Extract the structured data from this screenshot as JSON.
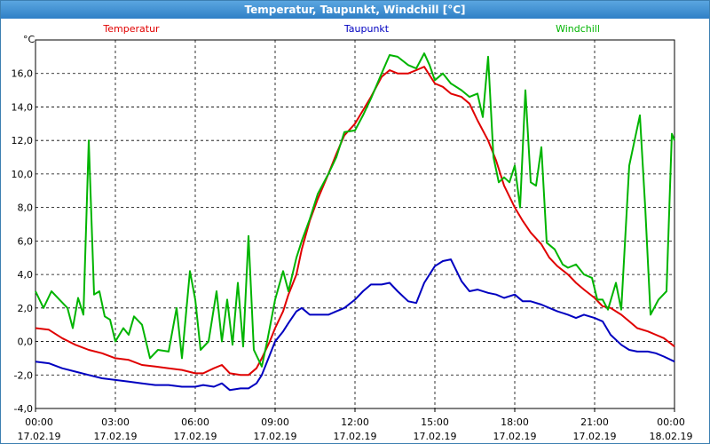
{
  "window": {
    "title": "Temperatur, Taupunkt, Windchill [°C]"
  },
  "chart_data": {
    "type": "line",
    "title": "Temperatur, Taupunkt, Windchill [°C]",
    "ylabel": "°C",
    "xlabel": "",
    "ylim": [
      -4.0,
      18.0
    ],
    "yticks": [
      "-4,0",
      "-2,0",
      "0,0",
      "2,0",
      "4,0",
      "6,0",
      "8,0",
      "10,0",
      "12,0",
      "14,0",
      "16,0"
    ],
    "xticks": [
      {
        "time": "00:00",
        "date": "17.02.19"
      },
      {
        "time": "03:00",
        "date": "17.02.19"
      },
      {
        "time": "06:00",
        "date": "17.02.19"
      },
      {
        "time": "09:00",
        "date": "17.02.19"
      },
      {
        "time": "12:00",
        "date": "17.02.19"
      },
      {
        "time": "15:00",
        "date": "17.02.19"
      },
      {
        "time": "18:00",
        "date": "17.02.19"
      },
      {
        "time": "21:00",
        "date": "17.02.19"
      },
      {
        "time": "00:00",
        "date": "18.02.19"
      }
    ],
    "x_unit": "hours since 17.02.19 00:00",
    "xlim": [
      0,
      24
    ],
    "grid": true,
    "legend_position": "top",
    "series": [
      {
        "name": "Temperatur",
        "color": "#e00000",
        "points": [
          [
            0,
            0.8
          ],
          [
            0.5,
            0.7
          ],
          [
            1,
            0.2
          ],
          [
            1.5,
            -0.2
          ],
          [
            2,
            -0.5
          ],
          [
            2.5,
            -0.7
          ],
          [
            3,
            -1.0
          ],
          [
            3.5,
            -1.1
          ],
          [
            4,
            -1.4
          ],
          [
            4.5,
            -1.5
          ],
          [
            5,
            -1.6
          ],
          [
            5.5,
            -1.7
          ],
          [
            6,
            -1.9
          ],
          [
            6.3,
            -1.9
          ],
          [
            6.7,
            -1.6
          ],
          [
            7,
            -1.4
          ],
          [
            7.3,
            -1.9
          ],
          [
            7.7,
            -2.0
          ],
          [
            8,
            -2.0
          ],
          [
            8.3,
            -1.6
          ],
          [
            8.5,
            -1.0
          ],
          [
            8.8,
            0.0
          ],
          [
            9,
            0.8
          ],
          [
            9.3,
            1.8
          ],
          [
            9.5,
            2.8
          ],
          [
            9.8,
            4.0
          ],
          [
            10,
            5.5
          ],
          [
            10.3,
            7.2
          ],
          [
            10.6,
            8.5
          ],
          [
            11,
            10.0
          ],
          [
            11.3,
            11.2
          ],
          [
            11.6,
            12.3
          ],
          [
            12,
            13.0
          ],
          [
            12.3,
            13.8
          ],
          [
            12.6,
            14.6
          ],
          [
            13,
            15.8
          ],
          [
            13.3,
            16.2
          ],
          [
            13.6,
            16.0
          ],
          [
            14,
            16.0
          ],
          [
            14.3,
            16.2
          ],
          [
            14.6,
            16.4
          ],
          [
            15,
            15.4
          ],
          [
            15.3,
            15.2
          ],
          [
            15.6,
            14.8
          ],
          [
            16,
            14.6
          ],
          [
            16.3,
            14.2
          ],
          [
            16.6,
            13.2
          ],
          [
            17,
            12.0
          ],
          [
            17.3,
            10.8
          ],
          [
            17.6,
            9.3
          ],
          [
            18,
            8.0
          ],
          [
            18.3,
            7.2
          ],
          [
            18.6,
            6.5
          ],
          [
            19,
            5.8
          ],
          [
            19.3,
            5.0
          ],
          [
            19.6,
            4.5
          ],
          [
            20,
            4.0
          ],
          [
            20.3,
            3.5
          ],
          [
            20.6,
            3.1
          ],
          [
            21,
            2.6
          ],
          [
            21.3,
            2.1
          ],
          [
            21.6,
            2.0
          ],
          [
            22,
            1.6
          ],
          [
            22.3,
            1.2
          ],
          [
            22.6,
            0.8
          ],
          [
            23,
            0.6
          ],
          [
            23.3,
            0.4
          ],
          [
            23.6,
            0.2
          ],
          [
            24,
            -0.3
          ]
        ]
      },
      {
        "name": "Taupunkt",
        "color": "#0000c0",
        "points": [
          [
            0,
            -1.2
          ],
          [
            0.5,
            -1.3
          ],
          [
            1,
            -1.6
          ],
          [
            1.5,
            -1.8
          ],
          [
            2,
            -2.0
          ],
          [
            2.5,
            -2.2
          ],
          [
            3,
            -2.3
          ],
          [
            3.5,
            -2.4
          ],
          [
            4,
            -2.5
          ],
          [
            4.5,
            -2.6
          ],
          [
            5,
            -2.6
          ],
          [
            5.5,
            -2.7
          ],
          [
            6,
            -2.7
          ],
          [
            6.3,
            -2.6
          ],
          [
            6.7,
            -2.7
          ],
          [
            7,
            -2.5
          ],
          [
            7.3,
            -2.9
          ],
          [
            7.7,
            -2.8
          ],
          [
            8,
            -2.8
          ],
          [
            8.3,
            -2.5
          ],
          [
            8.5,
            -2.0
          ],
          [
            8.8,
            -0.8
          ],
          [
            9,
            0.0
          ],
          [
            9.3,
            0.6
          ],
          [
            9.5,
            1.1
          ],
          [
            9.8,
            1.8
          ],
          [
            10,
            2.0
          ],
          [
            10.3,
            1.6
          ],
          [
            10.6,
            1.6
          ],
          [
            11,
            1.6
          ],
          [
            11.3,
            1.8
          ],
          [
            11.6,
            2.0
          ],
          [
            12,
            2.5
          ],
          [
            12.3,
            3.0
          ],
          [
            12.6,
            3.4
          ],
          [
            13,
            3.4
          ],
          [
            13.3,
            3.5
          ],
          [
            13.6,
            3.0
          ],
          [
            14,
            2.4
          ],
          [
            14.3,
            2.3
          ],
          [
            14.6,
            3.5
          ],
          [
            15,
            4.5
          ],
          [
            15.3,
            4.8
          ],
          [
            15.6,
            4.9
          ],
          [
            16,
            3.6
          ],
          [
            16.3,
            3.0
          ],
          [
            16.6,
            3.1
          ],
          [
            17,
            2.9
          ],
          [
            17.3,
            2.8
          ],
          [
            17.6,
            2.6
          ],
          [
            18,
            2.8
          ],
          [
            18.3,
            2.4
          ],
          [
            18.6,
            2.4
          ],
          [
            19,
            2.2
          ],
          [
            19.3,
            2.0
          ],
          [
            19.6,
            1.8
          ],
          [
            20,
            1.6
          ],
          [
            20.3,
            1.4
          ],
          [
            20.6,
            1.6
          ],
          [
            21,
            1.4
          ],
          [
            21.3,
            1.2
          ],
          [
            21.6,
            0.4
          ],
          [
            22,
            -0.2
          ],
          [
            22.3,
            -0.5
          ],
          [
            22.6,
            -0.6
          ],
          [
            23,
            -0.6
          ],
          [
            23.3,
            -0.7
          ],
          [
            23.6,
            -0.9
          ],
          [
            24,
            -1.2
          ]
        ]
      },
      {
        "name": "Windchill",
        "color": "#00b400",
        "points": [
          [
            0,
            3.0
          ],
          [
            0.3,
            2.0
          ],
          [
            0.6,
            3.0
          ],
          [
            0.9,
            2.5
          ],
          [
            1.2,
            2.0
          ],
          [
            1.4,
            0.8
          ],
          [
            1.6,
            2.6
          ],
          [
            1.8,
            1.6
          ],
          [
            2.0,
            12.0
          ],
          [
            2.2,
            2.8
          ],
          [
            2.4,
            3.0
          ],
          [
            2.6,
            1.5
          ],
          [
            2.8,
            1.3
          ],
          [
            3.0,
            0.0
          ],
          [
            3.3,
            0.8
          ],
          [
            3.5,
            0.4
          ],
          [
            3.7,
            1.5
          ],
          [
            4.0,
            1.0
          ],
          [
            4.3,
            -1.0
          ],
          [
            4.6,
            -0.5
          ],
          [
            5.0,
            -0.6
          ],
          [
            5.3,
            2.0
          ],
          [
            5.5,
            -1.0
          ],
          [
            5.8,
            4.2
          ],
          [
            6.0,
            2.5
          ],
          [
            6.2,
            -0.5
          ],
          [
            6.5,
            0.0
          ],
          [
            6.8,
            3.0
          ],
          [
            7.0,
            0.0
          ],
          [
            7.2,
            2.5
          ],
          [
            7.4,
            -0.2
          ],
          [
            7.6,
            3.5
          ],
          [
            7.8,
            -0.3
          ],
          [
            8.0,
            6.3
          ],
          [
            8.2,
            -0.5
          ],
          [
            8.5,
            -1.5
          ],
          [
            8.7,
            0.0
          ],
          [
            9.0,
            2.5
          ],
          [
            9.3,
            4.2
          ],
          [
            9.5,
            3.0
          ],
          [
            9.8,
            5.0
          ],
          [
            10.0,
            6.0
          ],
          [
            10.3,
            7.3
          ],
          [
            10.6,
            8.8
          ],
          [
            11.0,
            10.0
          ],
          [
            11.3,
            11.0
          ],
          [
            11.6,
            12.5
          ],
          [
            12.0,
            12.6
          ],
          [
            12.3,
            13.5
          ],
          [
            12.6,
            14.5
          ],
          [
            13.0,
            16.0
          ],
          [
            13.3,
            17.1
          ],
          [
            13.6,
            17.0
          ],
          [
            14.0,
            16.5
          ],
          [
            14.3,
            16.3
          ],
          [
            14.6,
            17.2
          ],
          [
            14.8,
            16.5
          ],
          [
            15.0,
            15.6
          ],
          [
            15.3,
            16.0
          ],
          [
            15.6,
            15.4
          ],
          [
            16.0,
            15.0
          ],
          [
            16.3,
            14.6
          ],
          [
            16.6,
            14.8
          ],
          [
            16.8,
            13.4
          ],
          [
            17.0,
            17.0
          ],
          [
            17.2,
            11.0
          ],
          [
            17.4,
            9.5
          ],
          [
            17.6,
            9.8
          ],
          [
            17.8,
            9.5
          ],
          [
            18.0,
            10.5
          ],
          [
            18.2,
            8.0
          ],
          [
            18.4,
            15.0
          ],
          [
            18.6,
            9.5
          ],
          [
            18.8,
            9.3
          ],
          [
            19.0,
            11.6
          ],
          [
            19.2,
            5.9
          ],
          [
            19.5,
            5.5
          ],
          [
            19.8,
            4.6
          ],
          [
            20.0,
            4.4
          ],
          [
            20.3,
            4.6
          ],
          [
            20.6,
            4.0
          ],
          [
            20.9,
            3.8
          ],
          [
            21.1,
            2.5
          ],
          [
            21.3,
            2.5
          ],
          [
            21.5,
            1.9
          ],
          [
            21.8,
            3.5
          ],
          [
            22.0,
            1.9
          ],
          [
            22.3,
            10.5
          ],
          [
            22.5,
            12.0
          ],
          [
            22.7,
            13.5
          ],
          [
            22.9,
            8.0
          ],
          [
            23.1,
            1.6
          ],
          [
            23.4,
            2.5
          ],
          [
            23.7,
            3.0
          ],
          [
            23.9,
            12.4
          ],
          [
            24.0,
            12.0
          ]
        ]
      }
    ]
  }
}
